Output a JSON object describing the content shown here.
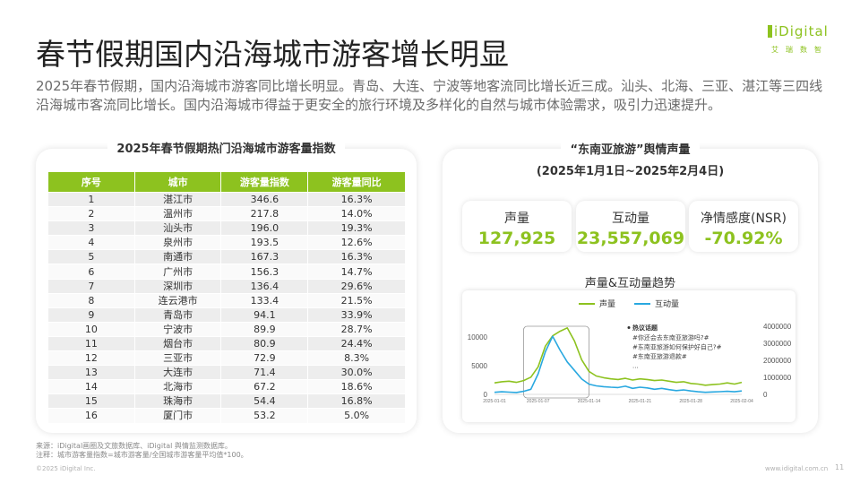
{
  "title": "春节假期国内沿海城市游客增长明显",
  "subtitle": "2025年春节假期，国内沿海城市游客同比增长明显。青岛、大连、宁波等地客流同比增长近三成。汕头、北海、三亚、湛江等三四线沿海城市客流同比增长。国内沿海城市得益于更安全的旅行环境及多样化的自然与城市体验需求，吸引力迅速提升。",
  "logo": {
    "text": "iDigital",
    "cn": "艾瑞数智"
  },
  "left_card": {
    "title": "2025年春节假期热门沿海城市游客量指数",
    "headers": [
      "序号",
      "城市",
      "游客量指数",
      "游客量同比"
    ],
    "rows": [
      [
        "1",
        "湛江市",
        "346.6",
        "16.3%"
      ],
      [
        "2",
        "温州市",
        "217.8",
        "14.0%"
      ],
      [
        "3",
        "汕头市",
        "196.0",
        "19.3%"
      ],
      [
        "4",
        "泉州市",
        "193.5",
        "12.6%"
      ],
      [
        "5",
        "南通市",
        "167.3",
        "16.3%"
      ],
      [
        "6",
        "广州市",
        "156.3",
        "14.7%"
      ],
      [
        "7",
        "深圳市",
        "136.4",
        "29.6%"
      ],
      [
        "8",
        "连云港市",
        "133.4",
        "21.5%"
      ],
      [
        "9",
        "青岛市",
        "94.1",
        "33.9%"
      ],
      [
        "10",
        "宁波市",
        "89.9",
        "28.7%"
      ],
      [
        "11",
        "烟台市",
        "80.9",
        "24.4%"
      ],
      [
        "12",
        "三亚市",
        "72.9",
        "8.3%"
      ],
      [
        "13",
        "大连市",
        "71.4",
        "30.0%"
      ],
      [
        "14",
        "北海市",
        "67.2",
        "18.6%"
      ],
      [
        "15",
        "珠海市",
        "54.4",
        "16.8%"
      ],
      [
        "16",
        "厦门市",
        "53.2",
        "5.0%"
      ]
    ]
  },
  "right_card": {
    "title_line1": "“东南亚旅游”舆情声量",
    "title_line2": "(2025年1月1日~2025年2月4日)",
    "metrics": [
      {
        "label": "声量",
        "value": "127,925"
      },
      {
        "label": "互动量",
        "value": "23,557,069"
      },
      {
        "label": "净情感度(NSR)",
        "value": "-70.92%"
      }
    ],
    "trend_title": "声量&互动量趋势"
  },
  "colors": {
    "accent": "#8dc21f",
    "secondary": "#29a8e0"
  },
  "chart_data": {
    "type": "line",
    "x": [
      "2025-01-01",
      "2025-01-02",
      "2025-01-03",
      "2025-01-04",
      "2025-01-05",
      "2025-01-06",
      "2025-01-07",
      "2025-01-08",
      "2025-01-09",
      "2025-01-10",
      "2025-01-11",
      "2025-01-12",
      "2025-01-13",
      "2025-01-14",
      "2025-01-15",
      "2025-01-16",
      "2025-01-17",
      "2025-01-18",
      "2025-01-19",
      "2025-01-20",
      "2025-01-21",
      "2025-01-22",
      "2025-01-23",
      "2025-01-24",
      "2025-01-25",
      "2025-01-26",
      "2025-01-27",
      "2025-01-28",
      "2025-01-29",
      "2025-01-30",
      "2025-01-31",
      "2025-02-01",
      "2025-02-02",
      "2025-02-03",
      "2025-02-04"
    ],
    "x_tick_labels": [
      "2025-01-01",
      "2025-01-07",
      "2025-01-14",
      "2025-01-21",
      "2025-01-28",
      "2025-02-04"
    ],
    "series": [
      {
        "name": "声量",
        "axis": "left",
        "color": "#8dc21f",
        "values": [
          2000,
          2200,
          2300,
          2100,
          2400,
          3000,
          4800,
          8400,
          10200,
          11000,
          11600,
          9300,
          6000,
          4000,
          3200,
          2900,
          2700,
          2600,
          2800,
          2500,
          2700,
          2600,
          2400,
          2500,
          2300,
          2100,
          2200,
          1900,
          1800,
          1600,
          1700,
          1800,
          2000,
          1800,
          2100
        ]
      },
      {
        "name": "互动量",
        "axis": "right",
        "color": "#29a8e0",
        "values": [
          120000,
          150000,
          130000,
          110000,
          180000,
          300000,
          1200000,
          2500000,
          3400000,
          2600000,
          1900000,
          1400000,
          900000,
          600000,
          500000,
          450000,
          420000,
          400000,
          480000,
          350000,
          420000,
          380000,
          300000,
          350000,
          280000,
          220000,
          260000,
          200000,
          150000,
          120000,
          140000,
          160000,
          180000,
          150000,
          200000
        ]
      }
    ],
    "y_left": {
      "ticks": [
        0,
        5000,
        10000
      ],
      "ylim": [
        0,
        12500
      ]
    },
    "y_right": {
      "ticks": [
        0,
        1000000,
        2000000,
        3000000,
        4000000
      ],
      "ylim": [
        0,
        4200000
      ]
    },
    "legend": "top-center",
    "annotation": {
      "title": "热议话题",
      "lines": [
        "#你还会去东南亚旅游吗?#",
        "#东南亚旅游如何保护好自己?#",
        "#东南亚旅游退款#",
        "..."
      ]
    }
  },
  "footer": {
    "source_line1": "来源：iDigital画圈及文旅数据库、iDigital 舆情监测数据库。",
    "source_line2": "注释：城市游客量指数=城市游客量/全国城市游客量平均值*100。",
    "copyright": "©2025 iDigital Inc.",
    "website": "www.idigital.com.cn",
    "page": "11"
  }
}
